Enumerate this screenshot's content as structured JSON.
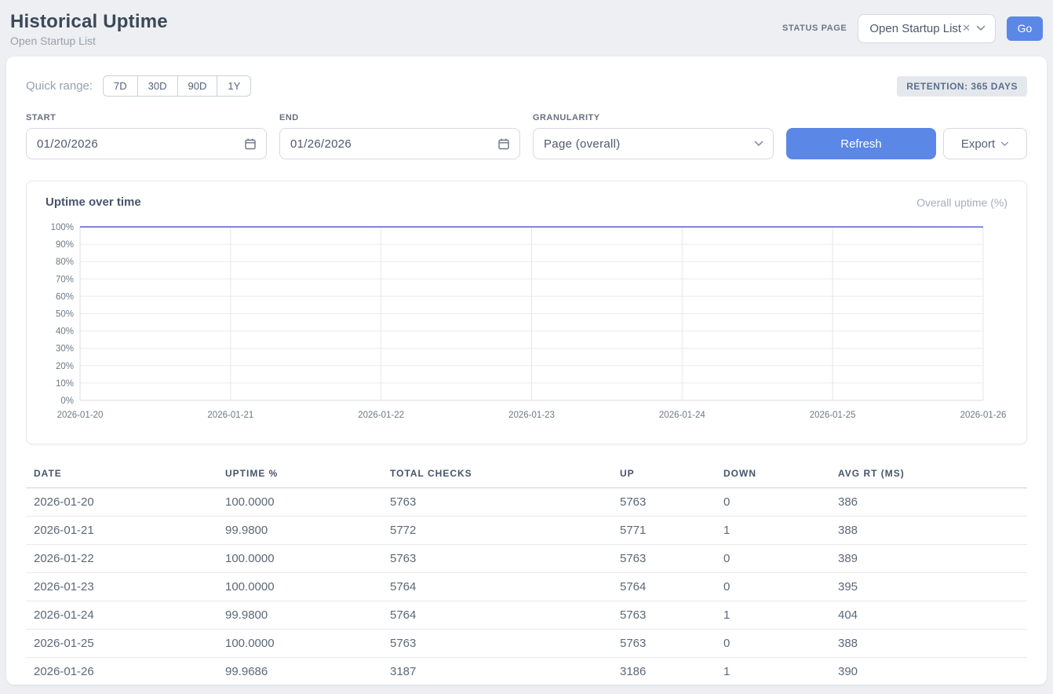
{
  "header": {
    "title": "Historical Uptime",
    "subtitle": "Open Startup List",
    "status_page_label": "STATUS PAGE",
    "status_page_value": "Open Startup List",
    "clear_icon": "close-x",
    "go_label": "Go"
  },
  "filters": {
    "quick_range_label": "Quick range:",
    "quick_ranges": [
      "7D",
      "30D",
      "90D",
      "1Y"
    ],
    "retention_badge": "RETENTION: 365 DAYS",
    "start_label": "START",
    "start_value": "01/20/2026",
    "end_label": "END",
    "end_value": "01/26/2026",
    "granularity_label": "GRANULARITY",
    "granularity_value": "Page (overall)",
    "refresh_label": "Refresh",
    "export_label": "Export"
  },
  "chart": {
    "title": "Uptime over time",
    "legend": "Overall uptime (%)"
  },
  "chart_data": {
    "type": "line",
    "title": "Uptime over time",
    "categories": [
      "2026-01-20",
      "2026-01-21",
      "2026-01-22",
      "2026-01-23",
      "2026-01-24",
      "2026-01-25",
      "2026-01-26"
    ],
    "series": [
      {
        "name": "Overall uptime (%)",
        "values": [
          100.0,
          99.98,
          100.0,
          100.0,
          99.98,
          100.0,
          99.9686
        ]
      }
    ],
    "ylim": [
      0,
      100
    ],
    "y_tick_step": 10,
    "y_tick_suffix": "%",
    "grid": true,
    "legend_position": "top-right",
    "line_color": "#7e84e8"
  },
  "table": {
    "columns": [
      "DATE",
      "UPTIME %",
      "TOTAL CHECKS",
      "UP",
      "DOWN",
      "AVG RT (MS)"
    ],
    "rows": [
      [
        "2026-01-20",
        "100.0000",
        "5763",
        "5763",
        "0",
        "386"
      ],
      [
        "2026-01-21",
        "99.9800",
        "5772",
        "5771",
        "1",
        "388"
      ],
      [
        "2026-01-22",
        "100.0000",
        "5763",
        "5763",
        "0",
        "389"
      ],
      [
        "2026-01-23",
        "100.0000",
        "5764",
        "5764",
        "0",
        "395"
      ],
      [
        "2026-01-24",
        "99.9800",
        "5764",
        "5763",
        "1",
        "404"
      ],
      [
        "2026-01-25",
        "100.0000",
        "5763",
        "5763",
        "0",
        "388"
      ],
      [
        "2026-01-26",
        "99.9686",
        "3187",
        "3186",
        "1",
        "390"
      ]
    ]
  },
  "colors": {
    "accent_blue": "#5b87e6",
    "line_indigo": "#7e84e8",
    "page_bg": "#edeff2",
    "badge_bg": "#e4e8ed",
    "grid_line": "#e9ebef",
    "axis_line": "#d9dde3"
  }
}
